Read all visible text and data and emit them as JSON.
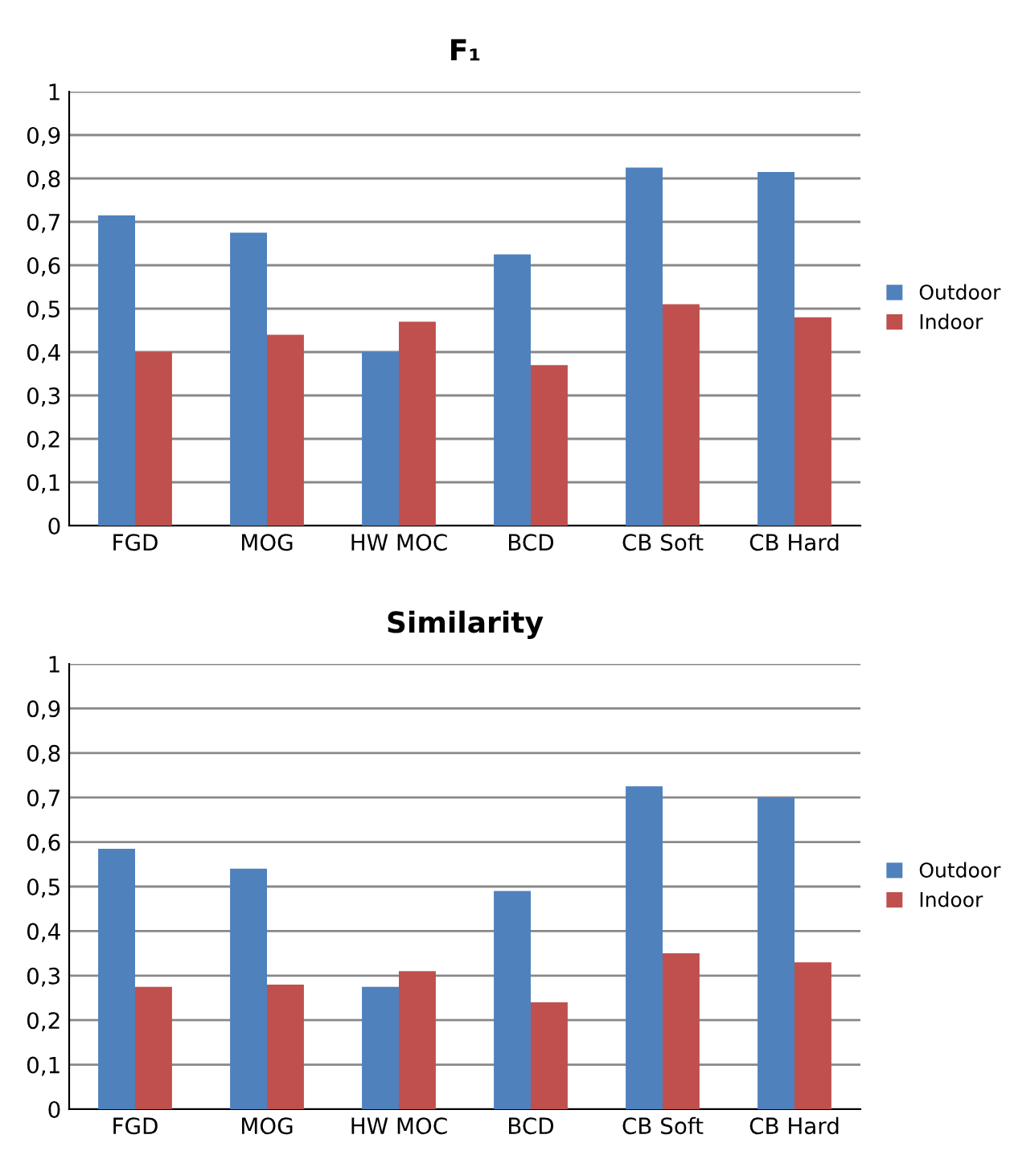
{
  "chart_data": [
    {
      "type": "bar",
      "title": "F₁",
      "categories": [
        "FGD",
        "MOG",
        "HW MOC",
        "BCD",
        "CB Soft",
        "CB Hard"
      ],
      "series": [
        {
          "name": "Outdoor",
          "color": "#4f81bd",
          "values": [
            0.715,
            0.675,
            0.4,
            0.625,
            0.825,
            0.815
          ]
        },
        {
          "name": "Indoor",
          "color": "#c0504d",
          "values": [
            0.4,
            0.44,
            0.47,
            0.37,
            0.51,
            0.48
          ]
        }
      ],
      "ylim": [
        0,
        1
      ],
      "yticks": [
        0,
        {
          "value": 0.1,
          "label": "0,1"
        },
        {
          "value": 0.2,
          "label": "0,2"
        },
        {
          "value": 0.3,
          "label": "0,3"
        },
        {
          "value": 0.4,
          "label": "0,4"
        },
        {
          "value": 0.5,
          "label": "0,5"
        },
        {
          "value": 0.6,
          "label": "0,6"
        },
        {
          "value": 0.7,
          "label": "0,7"
        },
        {
          "value": 0.8,
          "label": "0,8"
        },
        {
          "value": 0.9,
          "label": "0,9"
        },
        1
      ],
      "grid": "y",
      "legend": "right"
    },
    {
      "type": "bar",
      "title": "Similarity",
      "categories": [
        "FGD",
        "MOG",
        "HW MOC",
        "BCD",
        "CB Soft",
        "CB Hard"
      ],
      "series": [
        {
          "name": "Outdoor",
          "color": "#4f81bd",
          "values": [
            0.585,
            0.54,
            0.275,
            0.49,
            0.725,
            0.7
          ]
        },
        {
          "name": "Indoor",
          "color": "#c0504d",
          "values": [
            0.275,
            0.28,
            0.31,
            0.24,
            0.35,
            0.33
          ]
        }
      ],
      "ylim": [
        0,
        1
      ],
      "yticks": [
        0,
        {
          "value": 0.1,
          "label": "0,1"
        },
        {
          "value": 0.2,
          "label": "0,2"
        },
        {
          "value": 0.3,
          "label": "0,3"
        },
        {
          "value": 0.4,
          "label": "0,4"
        },
        {
          "value": 0.5,
          "label": "0,5"
        },
        {
          "value": 0.6,
          "label": "0,6"
        },
        {
          "value": 0.7,
          "label": "0,7"
        },
        {
          "value": 0.8,
          "label": "0,8"
        },
        {
          "value": 0.9,
          "label": "0,9"
        },
        1
      ],
      "grid": "y",
      "legend": "right"
    }
  ]
}
